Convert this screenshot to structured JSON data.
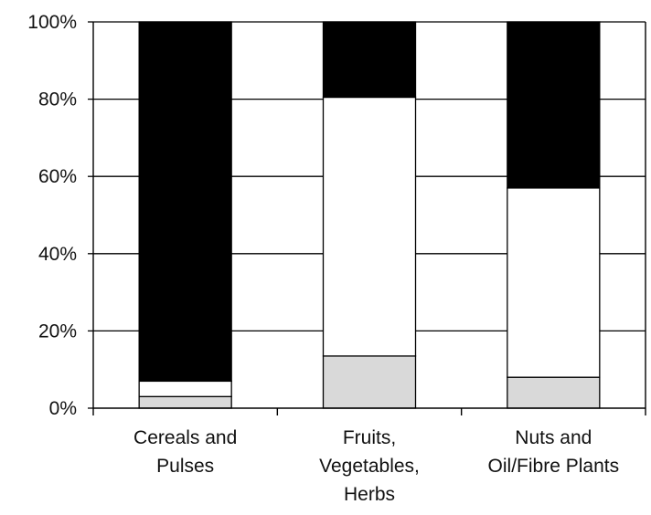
{
  "chart_data": {
    "type": "bar",
    "stacked": true,
    "percent_axis": true,
    "categories": [
      [
        "Cereals and",
        "Pulses"
      ],
      [
        "Fruits,",
        "Vegetables,",
        "Herbs"
      ],
      [
        "Nuts and",
        "Oil/Fibre Plants"
      ]
    ],
    "series": [
      {
        "values": [
          3,
          13.5,
          8
        ],
        "color": "#d9d9d9"
      },
      {
        "values": [
          4,
          67,
          49
        ],
        "color": "#ffffff"
      },
      {
        "values": [
          93,
          19.5,
          43
        ],
        "color": "#000000"
      }
    ],
    "ylim": [
      0,
      100
    ],
    "yticks": [
      "0%",
      "20%",
      "40%",
      "60%",
      "80%",
      "100%"
    ],
    "grid": true,
    "legend": false,
    "title": "",
    "xlabel": "",
    "ylabel": ""
  }
}
